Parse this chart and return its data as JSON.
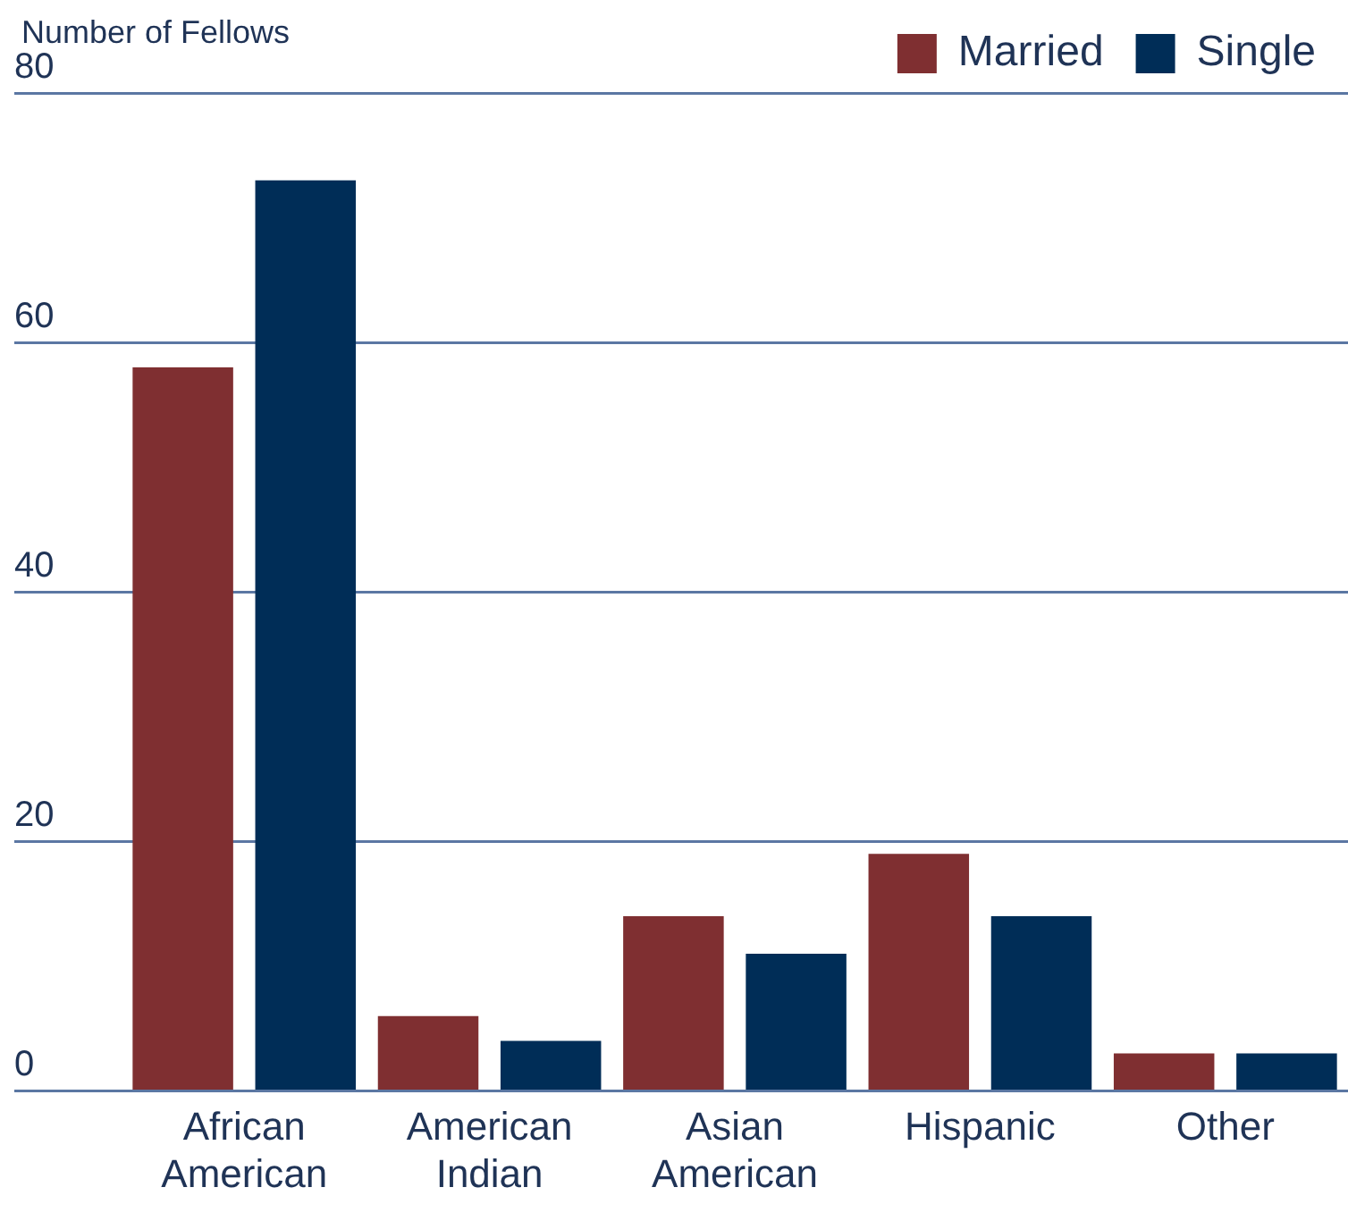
{
  "chart_data": {
    "type": "bar",
    "ylabel": "Number of Fellows",
    "categories": [
      "African American",
      "American Indian",
      "Asian American",
      "Hispanic",
      "Other"
    ],
    "series": [
      {
        "name": "Married",
        "color": "#7f2f31",
        "values": [
          58,
          6,
          14,
          19,
          3
        ]
      },
      {
        "name": "Single",
        "color": "#002d57",
        "values": [
          73,
          4,
          11,
          14,
          3
        ]
      }
    ],
    "ylim": [
      0,
      80
    ],
    "yticks": [
      0,
      20,
      40,
      60,
      80
    ],
    "grid": "y",
    "legend": "top right"
  }
}
